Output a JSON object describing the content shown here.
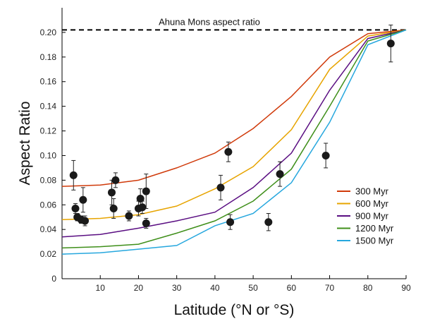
{
  "chart_data": {
    "type": "line",
    "xlabel": "Latitude (°N or °S)",
    "ylabel": "Aspect Ratio",
    "xlim": [
      0,
      90
    ],
    "ylim": [
      0,
      0.22
    ],
    "x_ticks": [
      "10",
      "20",
      "30",
      "40",
      "50",
      "60",
      "70",
      "80",
      "90"
    ],
    "y_ticks": [
      "0",
      "0.02",
      "0.04",
      "0.06",
      "0.08",
      "0.10",
      "0.12",
      "0.14",
      "0.16",
      "0.18",
      "0.20"
    ],
    "grid": false,
    "legend_position": "lower-right",
    "reference_line": {
      "y": 0.202,
      "label": "Ahuna Mons aspect ratio",
      "style": "dashed",
      "color": "#000000"
    },
    "series": [
      {
        "name": "300 Myr",
        "color": "#d03a0a",
        "x": [
          0,
          10,
          20,
          30,
          40,
          50,
          60,
          70,
          80,
          90
        ],
        "y": [
          0.075,
          0.076,
          0.08,
          0.09,
          0.102,
          0.122,
          0.148,
          0.18,
          0.199,
          0.202
        ]
      },
      {
        "name": "600 Myr",
        "color": "#e7a400",
        "x": [
          0,
          10,
          20,
          30,
          40,
          50,
          60,
          70,
          80,
          90
        ],
        "y": [
          0.048,
          0.049,
          0.052,
          0.059,
          0.073,
          0.091,
          0.121,
          0.17,
          0.197,
          0.202
        ]
      },
      {
        "name": "900 Myr",
        "color": "#5a0e82",
        "x": [
          0,
          10,
          20,
          30,
          40,
          50,
          60,
          70,
          80,
          90
        ],
        "y": [
          0.034,
          0.036,
          0.041,
          0.047,
          0.054,
          0.074,
          0.102,
          0.153,
          0.195,
          0.202
        ]
      },
      {
        "name": "1200 Myr",
        "color": "#3f8f1a",
        "x": [
          0,
          10,
          20,
          30,
          40,
          50,
          60,
          70,
          80,
          90
        ],
        "y": [
          0.025,
          0.026,
          0.028,
          0.037,
          0.047,
          0.063,
          0.089,
          0.14,
          0.193,
          0.202
        ]
      },
      {
        "name": "1500 Myr",
        "color": "#26a7de",
        "x": [
          0,
          10,
          20,
          30,
          40,
          50,
          60,
          70,
          80,
          90
        ],
        "y": [
          0.02,
          0.021,
          0.024,
          0.027,
          0.043,
          0.053,
          0.078,
          0.127,
          0.19,
          0.202
        ]
      }
    ],
    "observations": {
      "type": "scatter",
      "points": [
        {
          "x": 3,
          "y": 0.084,
          "err": 0.012
        },
        {
          "x": 3.5,
          "y": 0.057,
          "err": 0.004
        },
        {
          "x": 4,
          "y": 0.05,
          "err": 0.003
        },
        {
          "x": 5,
          "y": 0.048,
          "err": 0.003
        },
        {
          "x": 5.5,
          "y": 0.064,
          "err": 0.01
        },
        {
          "x": 6,
          "y": 0.047,
          "err": 0.004
        },
        {
          "x": 13,
          "y": 0.07,
          "err": 0.01
        },
        {
          "x": 13.5,
          "y": 0.057,
          "err": 0.008
        },
        {
          "x": 14,
          "y": 0.08,
          "err": 0.006
        },
        {
          "x": 17.5,
          "y": 0.051,
          "err": 0.004
        },
        {
          "x": 20,
          "y": 0.057,
          "err": 0.006
        },
        {
          "x": 20.5,
          "y": 0.065,
          "err": 0.008
        },
        {
          "x": 21,
          "y": 0.058,
          "err": 0.005
        },
        {
          "x": 22,
          "y": 0.071,
          "err": 0.014
        },
        {
          "x": 22,
          "y": 0.045,
          "err": 0.004
        },
        {
          "x": 41.5,
          "y": 0.074,
          "err": 0.01
        },
        {
          "x": 43.5,
          "y": 0.103,
          "err": 0.008
        },
        {
          "x": 44,
          "y": 0.046,
          "err": 0.006
        },
        {
          "x": 54,
          "y": 0.046,
          "err": 0.007
        },
        {
          "x": 57,
          "y": 0.085,
          "err": 0.01
        },
        {
          "x": 69,
          "y": 0.1,
          "err": 0.01
        },
        {
          "x": 86,
          "y": 0.191,
          "err": 0.015
        }
      ]
    }
  }
}
